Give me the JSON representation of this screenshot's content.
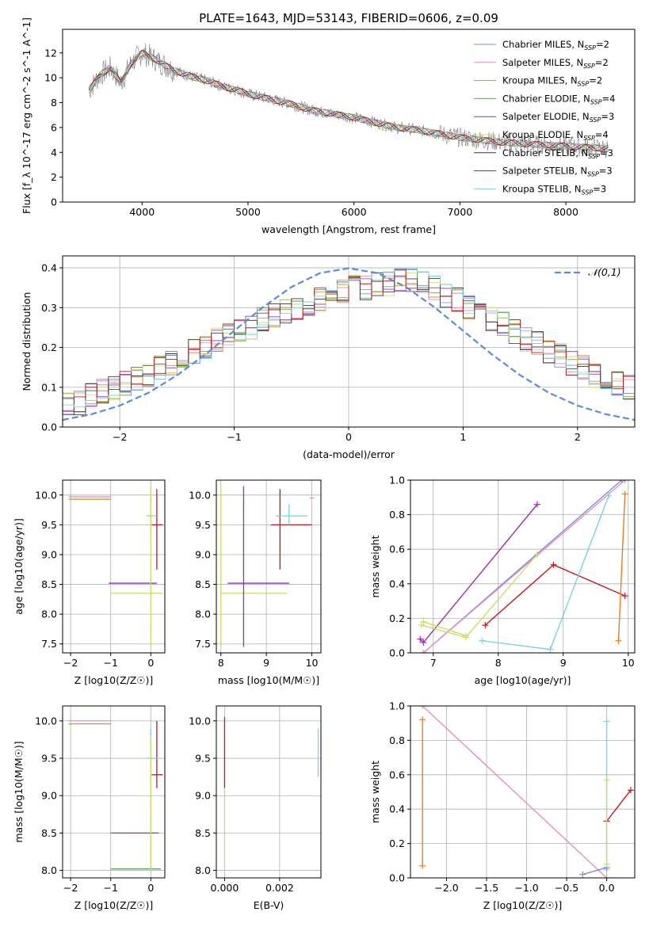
{
  "figure": {
    "title": "PLATE=1643, MJD=53143, FIBERID=0606, z=0.09"
  },
  "legend_series": [
    {
      "label": "Chabrier MILES, N_SSP=2",
      "color": "#7b8fd6"
    },
    {
      "label": "Salpeter MILES, N_SSP=2",
      "color": "#e48fc6"
    },
    {
      "label": "Kroupa MILES, N_SSP=2",
      "color": "#c89a2a"
    },
    {
      "label": "Chabrier ELODIE, N_SSP=4",
      "color": "#5fa35f"
    },
    {
      "label": "Salpeter ELODIE, N_SSP=3",
      "color": "#9b2fb0"
    },
    {
      "label": "Kroupa ELODIE, N_SSP=4",
      "color": "#c8e06a"
    },
    {
      "label": "Chabrier STELIB, N_SSP=3",
      "color": "#3a3a3a"
    },
    {
      "label": "Salpeter STELIB, N_SSP=3",
      "color": "#c0191f"
    },
    {
      "label": "Kroupa STELIB, N_SSP=3",
      "color": "#79d3dc"
    }
  ],
  "chart_data": [
    {
      "id": "spectrum",
      "type": "line",
      "title": "PLATE=1643, MJD=53143, FIBERID=0606, z=0.09",
      "xlabel": "wavelength [Angstrom, rest frame]",
      "ylabel": "Flux [f_λ 10^-17 erg cm^-2 s^-1 A^-1]",
      "xlim": [
        3250,
        8650
      ],
      "ylim": [
        0,
        13.9
      ],
      "xticks": [
        4000,
        5000,
        6000,
        7000,
        8000
      ],
      "yticks": [
        0,
        2,
        4,
        6,
        8,
        10,
        12
      ],
      "data_color": "#808080",
      "model_color": "#79d3dc",
      "data_x": [
        3500,
        3600,
        3700,
        3800,
        3900,
        4000,
        4100,
        4200,
        4300,
        4400,
        4500,
        4600,
        4700,
        4800,
        4900,
        5000,
        5200,
        5400,
        5600,
        5800,
        6000,
        6200,
        6400,
        6600,
        6800,
        7000,
        7200,
        7400,
        7600,
        7800,
        8000,
        8200,
        8400
      ],
      "data_y": [
        9.0,
        10.2,
        10.8,
        9.6,
        11.2,
        12.0,
        11.6,
        11.1,
        10.6,
        10.3,
        10.0,
        9.8,
        9.5,
        9.2,
        9.0,
        8.7,
        8.3,
        7.9,
        7.4,
        7.1,
        6.8,
        6.4,
        6.0,
        5.8,
        5.5,
        5.2,
        5.0,
        4.8,
        4.7,
        4.6,
        4.5,
        4.4,
        4.3
      ],
      "grid": false,
      "legend_position": "upper right"
    },
    {
      "id": "residuals",
      "type": "line",
      "xlabel": "(data-model)/error",
      "ylabel": "Normed distribution",
      "xlim": [
        -2.5,
        2.5
      ],
      "ylim": [
        0,
        0.43
      ],
      "xticks": [
        -2,
        -1,
        0,
        1,
        2
      ],
      "yticks": [
        0.0,
        0.1,
        0.2,
        0.3,
        0.4
      ],
      "series": [
        {
          "name": "𝒩(0,1)",
          "style": "dashed",
          "color": "#5b8bdc",
          "x": [
            -2.5,
            -2.25,
            -2.0,
            -1.75,
            -1.5,
            -1.25,
            -1.0,
            -0.75,
            -0.5,
            -0.25,
            0.0,
            0.25,
            0.5,
            0.75,
            1.0,
            1.25,
            1.5,
            1.75,
            2.0,
            2.25,
            2.5
          ],
          "y": [
            0.018,
            0.032,
            0.054,
            0.086,
            0.13,
            0.183,
            0.242,
            0.301,
            0.352,
            0.387,
            0.399,
            0.387,
            0.352,
            0.301,
            0.242,
            0.183,
            0.13,
            0.086,
            0.054,
            0.032,
            0.018
          ]
        }
      ],
      "hist_edges_start": -2.5,
      "hist_bin_width": 0.1,
      "hist_base": [
        0.06,
        0.06,
        0.08,
        0.09,
        0.1,
        0.11,
        0.12,
        0.13,
        0.15,
        0.16,
        0.18,
        0.19,
        0.2,
        0.22,
        0.23,
        0.24,
        0.25,
        0.27,
        0.28,
        0.29,
        0.3,
        0.31,
        0.32,
        0.33,
        0.34,
        0.35,
        0.35,
        0.36,
        0.36,
        0.37,
        0.37,
        0.36,
        0.35,
        0.33,
        0.32,
        0.3,
        0.29,
        0.27,
        0.26,
        0.24,
        0.22,
        0.21,
        0.19,
        0.18,
        0.16,
        0.15,
        0.13,
        0.12,
        0.11,
        0.1
      ],
      "legend_position": "upper right",
      "grid": true
    },
    {
      "id": "age-vs-Z",
      "type": "scatter",
      "xlabel": "Z [log10(Z/Z☉)]",
      "ylabel": "age  [log10(age/yr)]",
      "xlim": [
        -2.2,
        0.35
      ],
      "ylim": [
        7.35,
        10.25
      ],
      "xticks": [
        -2,
        -1,
        0
      ],
      "yticks": [
        7.5,
        8.0,
        8.5,
        9.0,
        9.5,
        10.0
      ],
      "points": [
        {
          "color": "#e48fc6",
          "x": [
            -2.05,
            -1.0
          ],
          "y": [
            9.97,
            9.97
          ]
        },
        {
          "color": "#c89a2a",
          "x": [
            -2.05,
            -1.0
          ],
          "y": [
            9.93,
            9.93
          ]
        },
        {
          "color": "#c0191f",
          "x": [
            0.15,
            0.15
          ],
          "y": [
            8.75,
            10.1
          ]
        },
        {
          "color": "#c0191f",
          "x": [
            0.02,
            0.3
          ],
          "y": [
            9.5,
            9.5
          ]
        },
        {
          "color": "#79d3dc",
          "x": [
            -0.1,
            0.15
          ],
          "y": [
            9.65,
            9.65
          ]
        },
        {
          "color": "#79d3dc",
          "x": [
            0.0,
            0.0
          ],
          "y": [
            9.4,
            10.1
          ]
        },
        {
          "color": "#9b2fb0",
          "x": [
            -1.05,
            0.15
          ],
          "y": [
            8.52,
            8.52
          ]
        },
        {
          "color": "#c8e06a",
          "x": [
            -1.0,
            0.3
          ],
          "y": [
            8.35,
            8.35
          ]
        },
        {
          "color": "#c8e06a",
          "x": [
            0.0,
            0.0
          ],
          "y": [
            7.45,
            10.15
          ]
        }
      ],
      "grid": true
    },
    {
      "id": "age-vs-mass",
      "type": "scatter",
      "xlabel": "mass [log10(M/M☉)]",
      "ylabel": "",
      "xlim": [
        7.9,
        10.2
      ],
      "ylim": [
        7.35,
        10.25
      ],
      "xticks": [
        8,
        9,
        10
      ],
      "yticks": [
        7.5,
        8.0,
        8.5,
        9.0,
        9.5,
        10.0
      ],
      "points": [
        {
          "color": "#c8e06a",
          "x": [
            8.0,
            8.0
          ],
          "y": [
            7.45,
            10.15
          ]
        },
        {
          "color": "#c8e06a",
          "x": [
            8.0,
            9.45
          ],
          "y": [
            8.35,
            8.35
          ]
        },
        {
          "color": "#9b2fb0",
          "x": [
            8.5,
            8.5
          ],
          "y": [
            7.45,
            10.15
          ]
        },
        {
          "color": "#9b2fb0",
          "x": [
            8.15,
            9.5
          ],
          "y": [
            8.52,
            8.52
          ]
        },
        {
          "color": "#c0191f",
          "x": [
            9.3,
            9.3
          ],
          "y": [
            8.75,
            10.1
          ]
        },
        {
          "color": "#c0191f",
          "x": [
            9.1,
            10.0
          ],
          "y": [
            9.5,
            9.5
          ]
        },
        {
          "color": "#79d3dc",
          "x": [
            9.5,
            9.5
          ],
          "y": [
            9.5,
            9.85
          ]
        },
        {
          "color": "#79d3dc",
          "x": [
            9.2,
            9.9
          ],
          "y": [
            9.65,
            9.65
          ]
        },
        {
          "color": "#e48fc6",
          "x": [
            9.95,
            10.05
          ],
          "y": [
            9.95,
            9.95
          ]
        }
      ],
      "grid": true
    },
    {
      "id": "mass-weight-vs-age",
      "type": "line",
      "xlabel": "age  [log10(age/yr)]",
      "ylabel": "mass weight",
      "xlim": [
        6.65,
        10.1
      ],
      "ylim": [
        0,
        1.0
      ],
      "xticks": [
        7,
        8,
        9,
        10
      ],
      "yticks": [
        0.0,
        0.2,
        0.4,
        0.6,
        0.8,
        1.0
      ],
      "series": [
        {
          "color": "#7b8fd6",
          "x": [
            6.85,
            9.9
          ],
          "y": [
            0.0,
            1.0
          ]
        },
        {
          "color": "#e48fc6",
          "x": [
            6.85,
            9.95
          ],
          "y": [
            0.0,
            1.0
          ]
        },
        {
          "color": "#9b2fb0",
          "x": [
            6.8,
            6.85,
            8.6
          ],
          "y": [
            0.08,
            0.06,
            0.86
          ]
        },
        {
          "color": "#c8e06a",
          "x": [
            6.82,
            7.5,
            8.6
          ],
          "y": [
            0.16,
            0.09,
            0.57
          ]
        },
        {
          "color": "#c8e06a",
          "x": [
            6.85,
            7.5
          ],
          "y": [
            0.18,
            0.1
          ]
        },
        {
          "color": "#c0191f",
          "x": [
            7.8,
            8.85,
            9.95
          ],
          "y": [
            0.16,
            0.51,
            0.33
          ]
        },
        {
          "color": "#79d3dc",
          "x": [
            7.75,
            8.8,
            9.7
          ],
          "y": [
            0.07,
            0.02,
            0.91
          ]
        },
        {
          "color": "#e87d2b",
          "x": [
            9.85,
            9.95
          ],
          "y": [
            0.07,
            0.92
          ]
        }
      ],
      "grid": true
    },
    {
      "id": "mass-vs-Z",
      "type": "scatter",
      "xlabel": "Z [log10(Z/Z☉)]",
      "ylabel": "mass [log10(M/M☉)]",
      "xlim": [
        -2.2,
        0.35
      ],
      "ylim": [
        7.9,
        10.2
      ],
      "xticks": [
        -2,
        -1,
        0
      ],
      "yticks": [
        8.0,
        8.5,
        9.0,
        9.5,
        10.0
      ],
      "points": [
        {
          "color": "#e48fc6",
          "x": [
            -2.05,
            -1.0
          ],
          "y": [
            10.0,
            10.0
          ]
        },
        {
          "color": "#c89a2a",
          "x": [
            -2.05,
            -1.0
          ],
          "y": [
            9.96,
            9.96
          ]
        },
        {
          "color": "#c0191f",
          "x": [
            0.15,
            0.15
          ],
          "y": [
            9.1,
            10.0
          ]
        },
        {
          "color": "#c0191f",
          "x": [
            0.02,
            0.3
          ],
          "y": [
            9.28,
            9.28
          ]
        },
        {
          "color": "#79d3dc",
          "x": [
            -0.1,
            0.2
          ],
          "y": [
            9.5,
            9.5
          ]
        },
        {
          "color": "#79d3dc",
          "x": [
            0.0,
            0.0
          ],
          "y": [
            8.05,
            9.9
          ]
        },
        {
          "color": "#9b2fb0",
          "x": [
            -1.0,
            0.2
          ],
          "y": [
            8.5,
            8.5
          ]
        },
        {
          "color": "#5fa35f",
          "x": [
            -1.0,
            0.25
          ],
          "y": [
            8.02,
            8.02
          ]
        },
        {
          "color": "#c8e06a",
          "x": [
            0.0,
            0.0
          ],
          "y": [
            8.0,
            9.8
          ]
        }
      ],
      "grid": true
    },
    {
      "id": "mass-vs-ebv",
      "type": "scatter",
      "xlabel": "E(B-V)",
      "ylabel": "",
      "xlim": [
        -0.0003,
        0.0035
      ],
      "ylim": [
        7.9,
        10.2
      ],
      "xticks": [
        0.0,
        0.002
      ],
      "xtick_labels": [
        "0.000",
        "0.002"
      ],
      "yticks": [
        8.0,
        8.5,
        9.0,
        9.5,
        10.0
      ],
      "points": [
        {
          "color": "#c0191f",
          "x": [
            0.0,
            0.0
          ],
          "y": [
            9.1,
            10.05
          ]
        },
        {
          "color": "#c8e06a",
          "x": [
            0.0,
            0.0
          ],
          "y": [
            7.95,
            9.1
          ]
        },
        {
          "color": "#79d3dc",
          "x": [
            0.0034,
            0.0034
          ],
          "y": [
            9.25,
            9.9
          ]
        }
      ],
      "grid": true
    },
    {
      "id": "mass-weight-vs-Z",
      "type": "line",
      "xlabel": "Z [log10(Z/Z☉)]",
      "ylabel": "mass weight",
      "xlim": [
        -2.45,
        0.35
      ],
      "ylim": [
        0,
        1.0
      ],
      "xticks": [
        -2.0,
        -1.5,
        -1.0,
        -0.5,
        0.0
      ],
      "xtick_labels": [
        "−2.0",
        "−1.5",
        "−1.0",
        "−0.5",
        "0.0"
      ],
      "yticks": [
        0.0,
        0.2,
        0.4,
        0.6,
        0.8,
        1.0
      ],
      "series": [
        {
          "color": "#e48fc6",
          "x": [
            -2.3,
            0.0
          ],
          "y": [
            1.0,
            0.0
          ]
        },
        {
          "color": "#e87d2b",
          "x": [
            -2.3,
            -2.3
          ],
          "y": [
            0.07,
            0.92
          ]
        },
        {
          "color": "#c0191f",
          "x": [
            0.0,
            0.3
          ],
          "y": [
            0.33,
            0.51
          ]
        },
        {
          "color": "#79d3dc",
          "x": [
            0.0,
            0.0
          ],
          "y": [
            0.05,
            0.91
          ]
        },
        {
          "color": "#7b8fd6",
          "x": [
            -0.3,
            0.0
          ],
          "y": [
            0.02,
            0.06
          ]
        },
        {
          "color": "#c8e06a",
          "x": [
            0.0,
            0.0
          ],
          "y": [
            0.08,
            0.57
          ]
        }
      ],
      "grid": true
    }
  ]
}
